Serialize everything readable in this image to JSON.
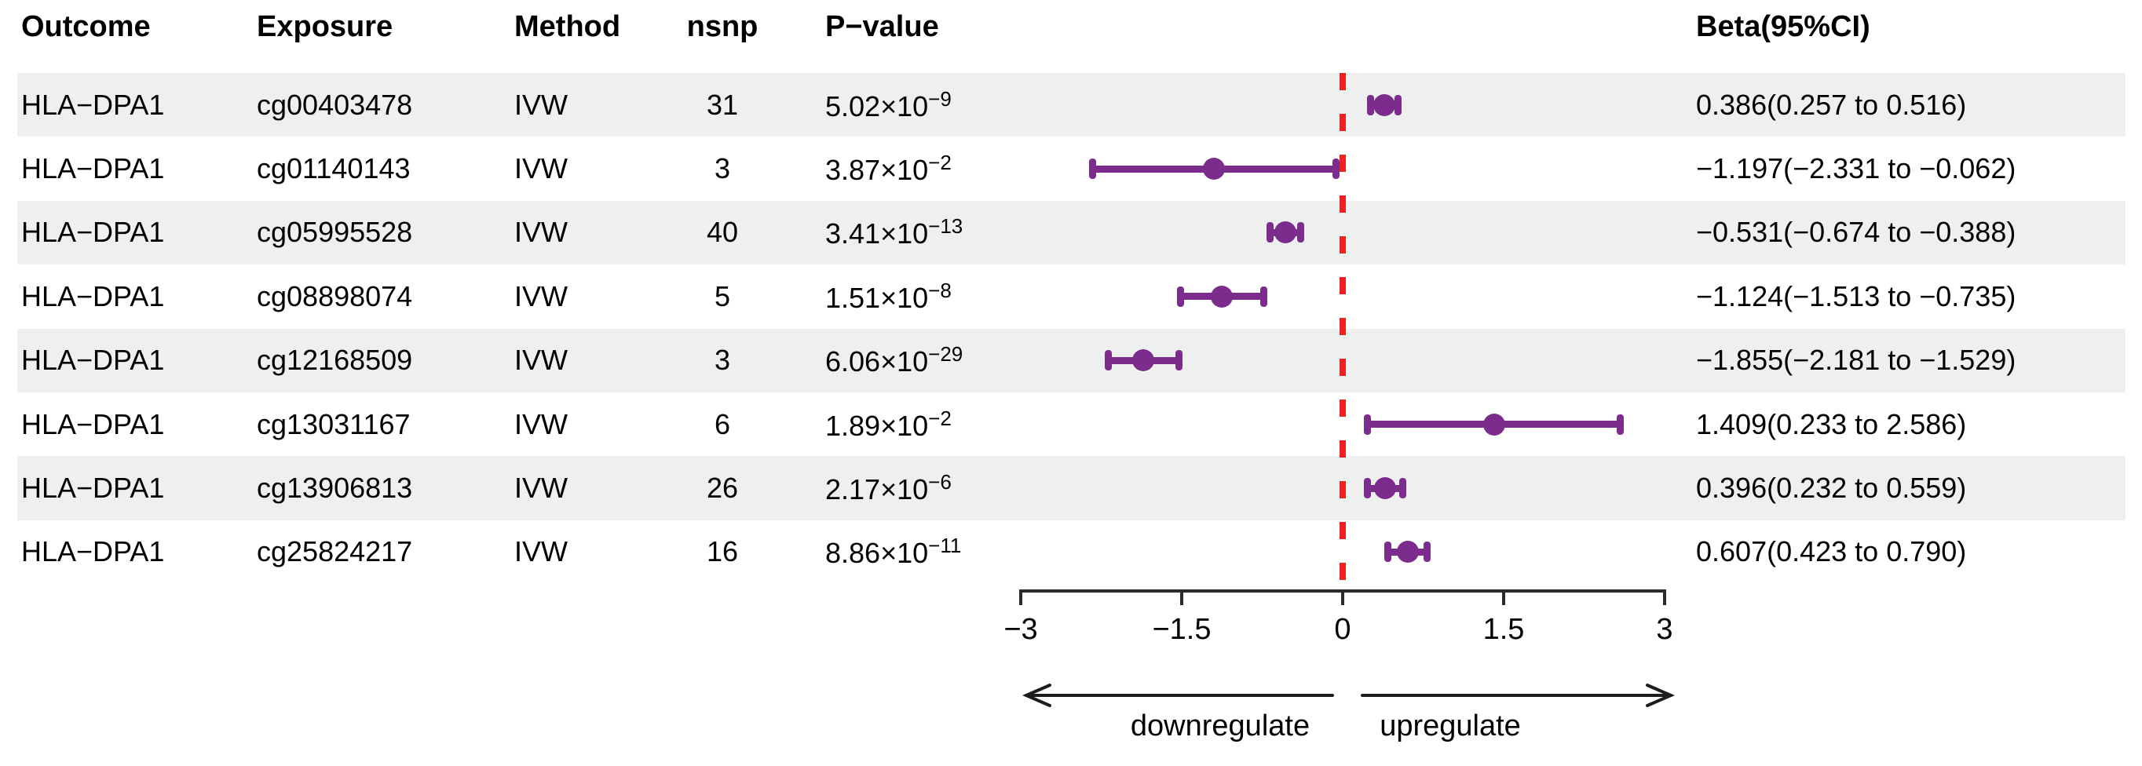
{
  "header": {
    "outcome": "Outcome",
    "exposure": "Exposure",
    "method": "Method",
    "nsnp": "nsnp",
    "pvalue": "P−value",
    "beta": "Beta(95%CI)"
  },
  "rows": [
    {
      "outcome": "HLA−DPA1",
      "exposure": "cg00403478",
      "method": "IVW",
      "nsnp": "31",
      "pvalue_base": "5.02×10",
      "pvalue_exp": "−9",
      "beta_label": "0.386(0.257 to 0.516)"
    },
    {
      "outcome": "HLA−DPA1",
      "exposure": "cg01140143",
      "method": "IVW",
      "nsnp": "3",
      "pvalue_base": "3.87×10",
      "pvalue_exp": "−2",
      "beta_label": "−1.197(−2.331 to −0.062)"
    },
    {
      "outcome": "HLA−DPA1",
      "exposure": "cg05995528",
      "method": "IVW",
      "nsnp": "40",
      "pvalue_base": "3.41×10",
      "pvalue_exp": "−13",
      "beta_label": "−0.531(−0.674 to −0.388)"
    },
    {
      "outcome": "HLA−DPA1",
      "exposure": "cg08898074",
      "method": "IVW",
      "nsnp": "5",
      "pvalue_base": "1.51×10",
      "pvalue_exp": "−8",
      "beta_label": "−1.124(−1.513 to −0.735)"
    },
    {
      "outcome": "HLA−DPA1",
      "exposure": "cg12168509",
      "method": "IVW",
      "nsnp": "3",
      "pvalue_base": "6.06×10",
      "pvalue_exp": "−29",
      "beta_label": "−1.855(−2.181 to −1.529)"
    },
    {
      "outcome": "HLA−DPA1",
      "exposure": "cg13031167",
      "method": "IVW",
      "nsnp": "6",
      "pvalue_base": "1.89×10",
      "pvalue_exp": "−2",
      "beta_label": "1.409(0.233 to 2.586)"
    },
    {
      "outcome": "HLA−DPA1",
      "exposure": "cg13906813",
      "method": "IVW",
      "nsnp": "26",
      "pvalue_base": "2.17×10",
      "pvalue_exp": "−6",
      "beta_label": "0.396(0.232 to 0.559)"
    },
    {
      "outcome": "HLA−DPA1",
      "exposure": "cg25824217",
      "method": "IVW",
      "nsnp": "16",
      "pvalue_base": "8.86×10",
      "pvalue_exp": "−11",
      "beta_label": "0.607(0.423 to 0.790)"
    }
  ],
  "chart_data": {
    "type": "scatter",
    "variant": "forest-plot",
    "title": "",
    "xlabel": "",
    "ylabel": "",
    "categories": [
      "cg00403478",
      "cg01140143",
      "cg05995528",
      "cg08898074",
      "cg12168509",
      "cg13031167",
      "cg13906813",
      "cg25824217"
    ],
    "series": [
      {
        "name": "Beta (IVW)",
        "values": [
          0.386,
          -1.197,
          -0.531,
          -1.124,
          -1.855,
          1.409,
          0.396,
          0.607
        ],
        "ci_low": [
          0.257,
          -2.331,
          -0.674,
          -1.513,
          -2.181,
          0.233,
          0.232,
          0.423
        ],
        "ci_high": [
          0.516,
          -0.062,
          -0.388,
          -0.735,
          -1.529,
          2.586,
          0.559,
          0.79
        ]
      }
    ],
    "xlim": [
      -3,
      3
    ],
    "x_ticks": [
      -3,
      -1.5,
      0,
      1.5,
      3
    ],
    "x_tick_labels": [
      "−3",
      "−1.5",
      "0",
      "1.5",
      "3"
    ],
    "reference_line": 0,
    "grid": false,
    "legend_position": "none"
  },
  "annotations": {
    "left_arrow_label": "downregulate",
    "right_arrow_label": "upregulate"
  },
  "colors": {
    "point": "#7b2c8c",
    "refline": "#ee2222",
    "stripe": "#eef0f0",
    "axis": "#2b2b2b",
    "text": "#000000"
  }
}
